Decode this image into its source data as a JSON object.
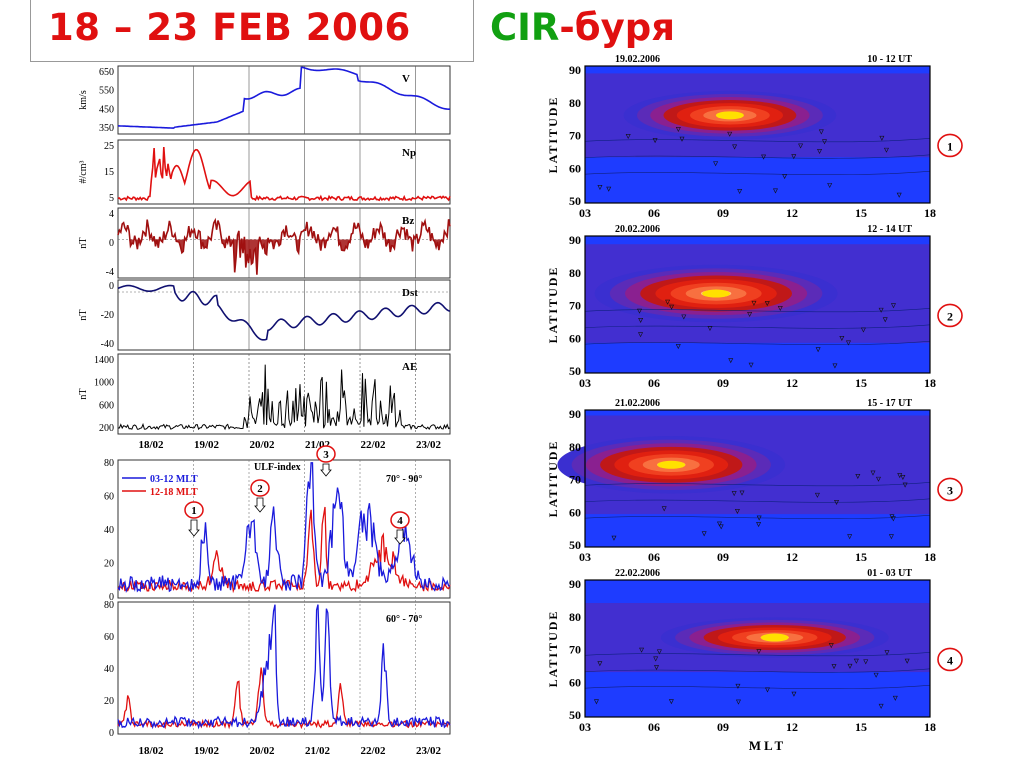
{
  "title": {
    "left": "18 – 23 FEB 2006",
    "cir": "CIR",
    "buria": "-буря"
  },
  "solar_wind_panels": [
    {
      "key": "V",
      "label": "V",
      "unit": "km/s",
      "yticks": [
        "650",
        "550",
        "450",
        "350"
      ]
    },
    {
      "key": "Np",
      "label": "Np",
      "unit": "#/cm³",
      "yticks": [
        "25",
        "15",
        "5"
      ]
    },
    {
      "key": "Bz",
      "label": "Bz",
      "unit": "nT",
      "yticks": [
        "4",
        "0",
        "-4"
      ]
    },
    {
      "key": "Dst",
      "label": "Dst",
      "unit": "nT",
      "yticks": [
        "0",
        "-20",
        "-40"
      ]
    },
    {
      "key": "AE",
      "label": "AE",
      "unit": "nT",
      "yticks": [
        "1400",
        "1000",
        "600",
        "200"
      ]
    }
  ],
  "date_ticks": [
    "18/02",
    "19/02",
    "20/02",
    "21/02",
    "22/02",
    "23/02"
  ],
  "ulf_panel": {
    "title": "ULF-index",
    "legend": [
      {
        "name": "03-12 MLT",
        "color": "#1a1adc"
      },
      {
        "name": "12-18 MLT",
        "color": "#e01010"
      }
    ],
    "top_range": "70° - 90°",
    "bottom_range": "60° - 70°",
    "top_yticks": [
      "80",
      "60",
      "40",
      "20",
      "0"
    ],
    "bottom_yticks": [
      "80",
      "60",
      "40",
      "20",
      "0"
    ],
    "markers": [
      "1",
      "2",
      "3",
      "4"
    ]
  },
  "map_panels": [
    {
      "date": "19.02.2006",
      "ut": "10 - 12 UT",
      "marker": "1"
    },
    {
      "date": "20.02.2006",
      "ut": "12 - 14 UT",
      "marker": "2"
    },
    {
      "date": "21.02.2006",
      "ut": "15 - 17 UT",
      "marker": "3"
    },
    {
      "date": "22.02.2006",
      "ut": "01 - 03 UT",
      "marker": "4"
    }
  ],
  "map_axes": {
    "ylabel": "LATITUDE",
    "xlabel": "MLT",
    "yticks": [
      "90",
      "80",
      "70",
      "60",
      "50"
    ],
    "xticks": [
      "03",
      "06",
      "09",
      "12",
      "15",
      "18"
    ]
  },
  "colors": {
    "title_red": "#e01010",
    "cir_green": "#11a011",
    "v_line": "#1a1adc",
    "np_line": "#e01010",
    "bz_line": "#a01010",
    "dst_line": "#101070",
    "ae_line": "#000000",
    "map_background": "#1e3cff"
  }
}
